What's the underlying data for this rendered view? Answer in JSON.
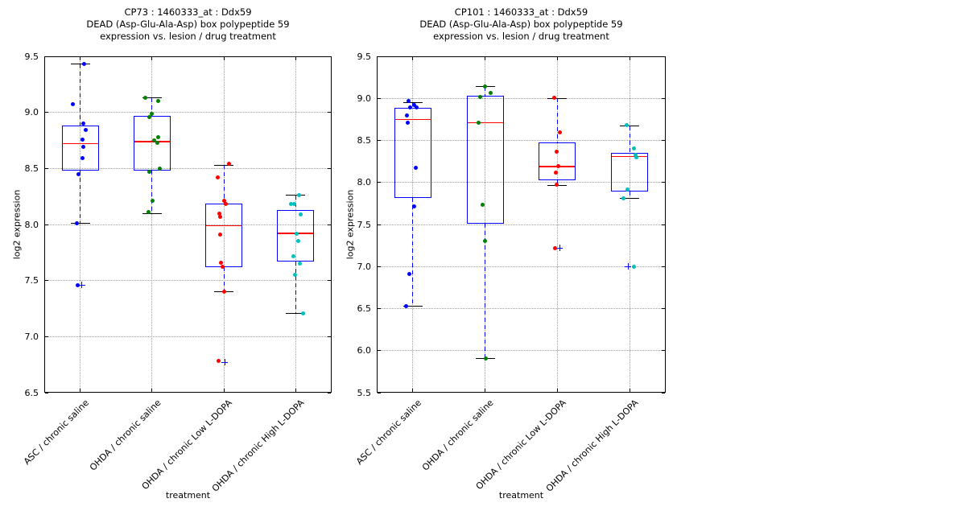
{
  "figure": {
    "background": "#ffffff",
    "grid_style": "dotted",
    "xlabel": "treatment",
    "ylabel": "log2 expression"
  },
  "style": {
    "box_color": "#0000ff",
    "median_color": "#ff0000",
    "whisker_color": "#0000ff",
    "cap_color": "#000000",
    "flier_color": "#0000ff",
    "grid_color": "#9a9a9a"
  },
  "chart_data": [
    {
      "type": "box",
      "title_lines": [
        "CP73 : 1460333_at : Ddx59",
        "DEAD (Asp-Glu-Ala-Asp) box polypeptide 59",
        "expression vs. lesion / drug treatment"
      ],
      "xlabel": "treatment",
      "ylabel": "log2 expression",
      "ylim": [
        6.5,
        9.5
      ],
      "yticks": [
        "6.5",
        "7.0",
        "7.5",
        "8.0",
        "8.5",
        "9.0",
        "9.5"
      ],
      "grid": true,
      "legend": null,
      "groups": [
        {
          "label": "ASC / chronic saline",
          "point_color": "#0000ff",
          "box": {
            "q1": 8.48,
            "median": 8.72,
            "q3": 8.88,
            "whisker_low": 8.01,
            "whisker_high": 9.43
          },
          "points": [
            {
              "dx": 5,
              "v": 9.43
            },
            {
              "dx": -9,
              "v": 9.07
            },
            {
              "dx": 4,
              "v": 8.9
            },
            {
              "dx": 7,
              "v": 8.84
            },
            {
              "dx": 3,
              "v": 8.76
            },
            {
              "dx": 4,
              "v": 8.69
            },
            {
              "dx": 3,
              "v": 8.59
            },
            {
              "dx": -2,
              "v": 8.45
            },
            {
              "dx": -4,
              "v": 8.01
            },
            {
              "dx": -3,
              "v": 7.46
            }
          ],
          "fliers": [
            {
              "dx": 2,
              "v": 7.46
            }
          ]
        },
        {
          "label": "OHDA / chronic saline",
          "point_color": "#008000",
          "box": {
            "q1": 8.48,
            "median": 8.74,
            "q3": 8.97,
            "whisker_low": 8.1,
            "whisker_high": 9.13
          },
          "points": [
            {
              "dx": -8,
              "v": 9.13
            },
            {
              "dx": 8,
              "v": 9.1
            },
            {
              "dx": 0,
              "v": 8.99
            },
            {
              "dx": -3,
              "v": 8.96
            },
            {
              "dx": 8,
              "v": 8.78
            },
            {
              "dx": 3,
              "v": 8.75
            },
            {
              "dx": 7,
              "v": 8.73
            },
            {
              "dx": 10,
              "v": 8.5
            },
            {
              "dx": -3,
              "v": 8.47
            },
            {
              "dx": 1,
              "v": 8.21
            },
            {
              "dx": -4,
              "v": 8.11
            }
          ],
          "fliers": []
        },
        {
          "label": "OHDA / chronic Low L-DOPA",
          "point_color": "#ff0000",
          "box": {
            "q1": 7.62,
            "median": 7.99,
            "q3": 8.19,
            "whisker_low": 7.4,
            "whisker_high": 8.53
          },
          "points": [
            {
              "dx": 6,
              "v": 8.54
            },
            {
              "dx": -8,
              "v": 8.42
            },
            {
              "dx": 0,
              "v": 8.21
            },
            {
              "dx": 2,
              "v": 8.18
            },
            {
              "dx": -6,
              "v": 8.1
            },
            {
              "dx": -5,
              "v": 8.07
            },
            {
              "dx": -5,
              "v": 7.91
            },
            {
              "dx": -4,
              "v": 7.66
            },
            {
              "dx": -2,
              "v": 7.62
            },
            {
              "dx": 0,
              "v": 7.4
            },
            {
              "dx": -7,
              "v": 6.78
            }
          ],
          "fliers": [
            {
              "dx": 1,
              "v": 6.77
            }
          ]
        },
        {
          "label": "OHDA / chronic High L-DOPA",
          "point_color": "#00bfbf",
          "box": {
            "q1": 7.67,
            "median": 7.92,
            "q3": 8.13,
            "whisker_low": 7.21,
            "whisker_high": 8.26
          },
          "points": [
            {
              "dx": 4,
              "v": 8.26
            },
            {
              "dx": -6,
              "v": 8.18
            },
            {
              "dx": -2,
              "v": 8.18
            },
            {
              "dx": 6,
              "v": 8.09
            },
            {
              "dx": 1,
              "v": 7.92
            },
            {
              "dx": 3,
              "v": 7.85
            },
            {
              "dx": -3,
              "v": 7.72
            },
            {
              "dx": 5,
              "v": 7.65
            },
            {
              "dx": -1,
              "v": 7.55
            },
            {
              "dx": 9,
              "v": 7.21
            }
          ],
          "fliers": []
        }
      ]
    },
    {
      "type": "box",
      "title_lines": [
        "CP101 : 1460333_at : Ddx59",
        "DEAD (Asp-Glu-Ala-Asp) box polypeptide 59",
        "expression vs. lesion / drug treatment"
      ],
      "xlabel": "treatment",
      "ylabel": "log2 expression",
      "ylim": [
        5.5,
        9.5
      ],
      "yticks": [
        "5.5",
        "6.0",
        "6.5",
        "7.0",
        "7.5",
        "8.0",
        "8.5",
        "9.0",
        "9.5"
      ],
      "grid": true,
      "legend": null,
      "groups": [
        {
          "label": "ASC / chronic saline",
          "point_color": "#0000ff",
          "box": {
            "q1": 7.82,
            "median": 8.75,
            "q3": 8.89,
            "whisker_low": 6.53,
            "whisker_high": 8.95
          },
          "points": [
            {
              "dx": -5,
              "v": 8.97
            },
            {
              "dx": 2,
              "v": 8.92
            },
            {
              "dx": -3,
              "v": 8.89
            },
            {
              "dx": 5,
              "v": 8.89
            },
            {
              "dx": -7,
              "v": 8.8
            },
            {
              "dx": -6,
              "v": 8.71
            },
            {
              "dx": 4,
              "v": 8.17
            },
            {
              "dx": 2,
              "v": 7.72
            },
            {
              "dx": -4,
              "v": 6.91
            },
            {
              "dx": -8,
              "v": 6.53
            }
          ],
          "fliers": []
        },
        {
          "label": "OHDA / chronic saline",
          "point_color": "#008000",
          "box": {
            "q1": 7.51,
            "median": 8.71,
            "q3": 9.03,
            "whisker_low": 5.91,
            "whisker_high": 9.14
          },
          "points": [
            {
              "dx": 0,
              "v": 9.14
            },
            {
              "dx": 7,
              "v": 9.06
            },
            {
              "dx": -6,
              "v": 9.02
            },
            {
              "dx": -8,
              "v": 8.71
            },
            {
              "dx": -3,
              "v": 7.73
            },
            {
              "dx": 0,
              "v": 7.3
            },
            {
              "dx": 1,
              "v": 5.91
            }
          ],
          "fliers": []
        },
        {
          "label": "OHDA / chronic Low L-DOPA",
          "point_color": "#ff0000",
          "box": {
            "q1": 8.03,
            "median": 8.19,
            "q3": 8.48,
            "whisker_low": 7.96,
            "whisker_high": 9.0
          },
          "points": [
            {
              "dx": -4,
              "v": 9.01
            },
            {
              "dx": 3,
              "v": 8.6
            },
            {
              "dx": -1,
              "v": 8.37
            },
            {
              "dx": 1,
              "v": 8.19
            },
            {
              "dx": -2,
              "v": 8.12
            },
            {
              "dx": -1,
              "v": 7.97
            },
            {
              "dx": -3,
              "v": 7.22
            }
          ],
          "fliers": [
            {
              "dx": 3,
              "v": 7.22
            }
          ]
        },
        {
          "label": "OHDA / chronic High L-DOPA",
          "point_color": "#00bfbf",
          "box": {
            "q1": 7.89,
            "median": 8.31,
            "q3": 8.35,
            "whisker_low": 7.81,
            "whisker_high": 8.67
          },
          "points": [
            {
              "dx": -4,
              "v": 8.68
            },
            {
              "dx": 5,
              "v": 8.4
            },
            {
              "dx": 7,
              "v": 8.33
            },
            {
              "dx": 8,
              "v": 8.3
            },
            {
              "dx": -3,
              "v": 7.92
            },
            {
              "dx": -8,
              "v": 7.81
            },
            {
              "dx": 5,
              "v": 7.0
            }
          ],
          "fliers": [
            {
              "dx": -2,
              "v": 7.0
            }
          ]
        }
      ]
    }
  ]
}
